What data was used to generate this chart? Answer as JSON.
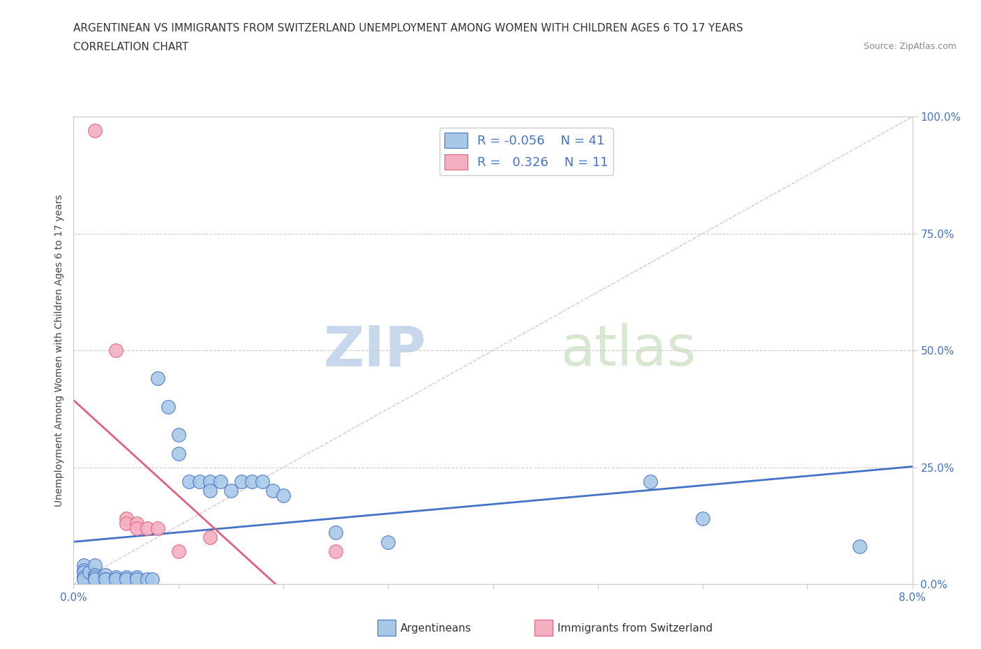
{
  "title_line1": "ARGENTINEAN VS IMMIGRANTS FROM SWITZERLAND UNEMPLOYMENT AMONG WOMEN WITH CHILDREN AGES 6 TO 17 YEARS",
  "title_line2": "CORRELATION CHART",
  "source_text": "Source: ZipAtlas.com",
  "ylabel_label": "Unemployment Among Women with Children Ages 6 to 17 years",
  "xlim": [
    0.0,
    0.08
  ],
  "ylim": [
    0.0,
    1.0
  ],
  "blue_color": "#a8c8e8",
  "pink_color": "#f4b0c0",
  "blue_line_color": "#4472c4",
  "pink_line_color": "#e06080",
  "diag_line_color": "#c8c8c8",
  "watermark_color": "#d8e4f0",
  "blue_scatter": [
    [
      0.001,
      0.04
    ],
    [
      0.001,
      0.03
    ],
    [
      0.001,
      0.025
    ],
    [
      0.001,
      0.015
    ],
    [
      0.001,
      0.01
    ],
    [
      0.0015,
      0.025
    ],
    [
      0.002,
      0.04
    ],
    [
      0.002,
      0.02
    ],
    [
      0.002,
      0.015
    ],
    [
      0.002,
      0.01
    ],
    [
      0.003,
      0.02
    ],
    [
      0.003,
      0.01
    ],
    [
      0.003,
      0.01
    ],
    [
      0.004,
      0.015
    ],
    [
      0.004,
      0.01
    ],
    [
      0.005,
      0.015
    ],
    [
      0.005,
      0.01
    ],
    [
      0.006,
      0.015
    ],
    [
      0.006,
      0.01
    ],
    [
      0.007,
      0.01
    ],
    [
      0.0075,
      0.01
    ],
    [
      0.008,
      0.44
    ],
    [
      0.009,
      0.38
    ],
    [
      0.01,
      0.32
    ],
    [
      0.01,
      0.28
    ],
    [
      0.011,
      0.22
    ],
    [
      0.012,
      0.22
    ],
    [
      0.013,
      0.22
    ],
    [
      0.013,
      0.2
    ],
    [
      0.014,
      0.22
    ],
    [
      0.015,
      0.2
    ],
    [
      0.016,
      0.22
    ],
    [
      0.017,
      0.22
    ],
    [
      0.018,
      0.22
    ],
    [
      0.019,
      0.2
    ],
    [
      0.02,
      0.19
    ],
    [
      0.025,
      0.11
    ],
    [
      0.03,
      0.09
    ],
    [
      0.055,
      0.22
    ],
    [
      0.06,
      0.14
    ],
    [
      0.075,
      0.08
    ]
  ],
  "pink_scatter": [
    [
      0.002,
      0.97
    ],
    [
      0.004,
      0.5
    ],
    [
      0.005,
      0.14
    ],
    [
      0.005,
      0.13
    ],
    [
      0.006,
      0.13
    ],
    [
      0.006,
      0.12
    ],
    [
      0.007,
      0.12
    ],
    [
      0.008,
      0.12
    ],
    [
      0.01,
      0.07
    ],
    [
      0.013,
      0.1
    ],
    [
      0.025,
      0.07
    ]
  ]
}
